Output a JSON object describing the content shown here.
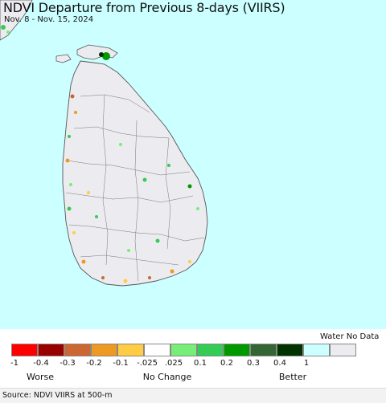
{
  "header": {
    "title": "NDVI Departure from Previous 8-days (VIIRS)",
    "date_range": "Nov. 8 - Nov. 15, 2024"
  },
  "map": {
    "region": "Sri Lanka",
    "colors": {
      "water": "#ccffff",
      "land_no_data": "#ececf0",
      "border": "#555555"
    }
  },
  "legend": {
    "water_no_data_label": "Water No Data",
    "colors": [
      "#ff0000",
      "#990000",
      "#cc6633",
      "#ee9922",
      "#ffcc44",
      "#ffffff",
      "#77ee77",
      "#33cc55",
      "#009900",
      "#336633",
      "#003300",
      "#ccffff",
      "#ececf0"
    ],
    "ticks": [
      "-1",
      "-0.4",
      "-0.3",
      "-0.2",
      "-0.1",
      "-.025",
      ".025",
      "0.1",
      "0.2",
      "0.3",
      "0.4",
      "1"
    ],
    "categories": {
      "worse": "Worse",
      "no_change": "No Change",
      "better": "Better"
    }
  },
  "footer": {
    "source": "Source: NDVI VIIRS at 500-m"
  }
}
